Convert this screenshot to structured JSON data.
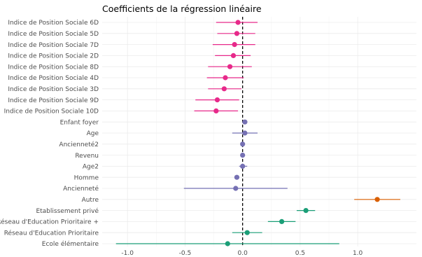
{
  "chart_data": {
    "type": "scatter",
    "title": "Coefficients de la régression linéaire",
    "xlabel": "",
    "ylabel": "",
    "xlim": [
      -1.22,
      1.51
    ],
    "xticks": [
      -1.0,
      -0.5,
      0.0,
      0.5,
      1.0
    ],
    "xtick_labels": [
      "-1.0",
      "-0.5",
      "0.0",
      "0.5",
      "1.0"
    ],
    "reference_line": 0,
    "grid": true,
    "legend": "none",
    "colors": {
      "magenta": "#e7298a",
      "purple": "#7570b3",
      "orange": "#d95f02",
      "green": "#1b9e77",
      "zero_line": "#000000"
    },
    "series": [
      {
        "label": "Indice de Position Sociale 6D",
        "color_key": "magenta",
        "estimate": -0.04,
        "low": -0.23,
        "high": 0.13
      },
      {
        "label": "Indice de Position Sociale 5D",
        "color_key": "magenta",
        "estimate": -0.05,
        "low": -0.22,
        "high": 0.11
      },
      {
        "label": "Indice de Position Sociale 7D",
        "color_key": "magenta",
        "estimate": -0.07,
        "low": -0.26,
        "high": 0.11
      },
      {
        "label": "Indice de Position Sociale 2D",
        "color_key": "magenta",
        "estimate": -0.08,
        "low": -0.24,
        "high": 0.07
      },
      {
        "label": "Indice de Position Sociale 8D",
        "color_key": "magenta",
        "estimate": -0.11,
        "low": -0.3,
        "high": 0.08
      },
      {
        "label": "Indice de Position Sociale 4D",
        "color_key": "magenta",
        "estimate": -0.15,
        "low": -0.31,
        "high": 0.01
      },
      {
        "label": "Indice de Position Sociale 3D",
        "color_key": "magenta",
        "estimate": -0.16,
        "low": -0.3,
        "high": -0.01
      },
      {
        "label": "Indice de Position Sociale 9D",
        "color_key": "magenta",
        "estimate": -0.22,
        "low": -0.41,
        "high": -0.03
      },
      {
        "label": "Indice de Position Sociale 10D",
        "color_key": "magenta",
        "estimate": -0.23,
        "low": -0.42,
        "high": -0.04
      },
      {
        "label": "Enfant foyer",
        "color_key": "purple",
        "estimate": 0.02,
        "low": 0.0,
        "high": 0.04
      },
      {
        "label": "Age",
        "color_key": "purple",
        "estimate": 0.02,
        "low": -0.09,
        "high": 0.13
      },
      {
        "label": "Ancienneté2",
        "color_key": "purple",
        "estimate": 0.0,
        "low": -0.01,
        "high": 0.01
      },
      {
        "label": "Revenu",
        "color_key": "purple",
        "estimate": 0.0,
        "low": -0.01,
        "high": 0.01
      },
      {
        "label": "Age2",
        "color_key": "purple",
        "estimate": 0.0,
        "low": -0.03,
        "high": 0.04
      },
      {
        "label": "Homme",
        "color_key": "purple",
        "estimate": -0.05,
        "low": -0.07,
        "high": -0.03
      },
      {
        "label": "Ancienneté",
        "color_key": "purple",
        "estimate": -0.06,
        "low": -0.51,
        "high": 0.39
      },
      {
        "label": "Autre",
        "color_key": "orange",
        "estimate": 1.17,
        "low": 0.97,
        "high": 1.37
      },
      {
        "label": "Etablissement privé",
        "color_key": "green",
        "estimate": 0.55,
        "low": 0.47,
        "high": 0.63
      },
      {
        "label": "Réseau d'Education Prioritaire +",
        "color_key": "green",
        "estimate": 0.34,
        "low": 0.22,
        "high": 0.46
      },
      {
        "label": "Réseau d'Education Prioritaire",
        "color_key": "green",
        "estimate": 0.04,
        "low": -0.09,
        "high": 0.17
      },
      {
        "label": "Ecole élémentaire",
        "color_key": "green",
        "estimate": -0.13,
        "low": -1.1,
        "high": 0.84
      }
    ]
  }
}
